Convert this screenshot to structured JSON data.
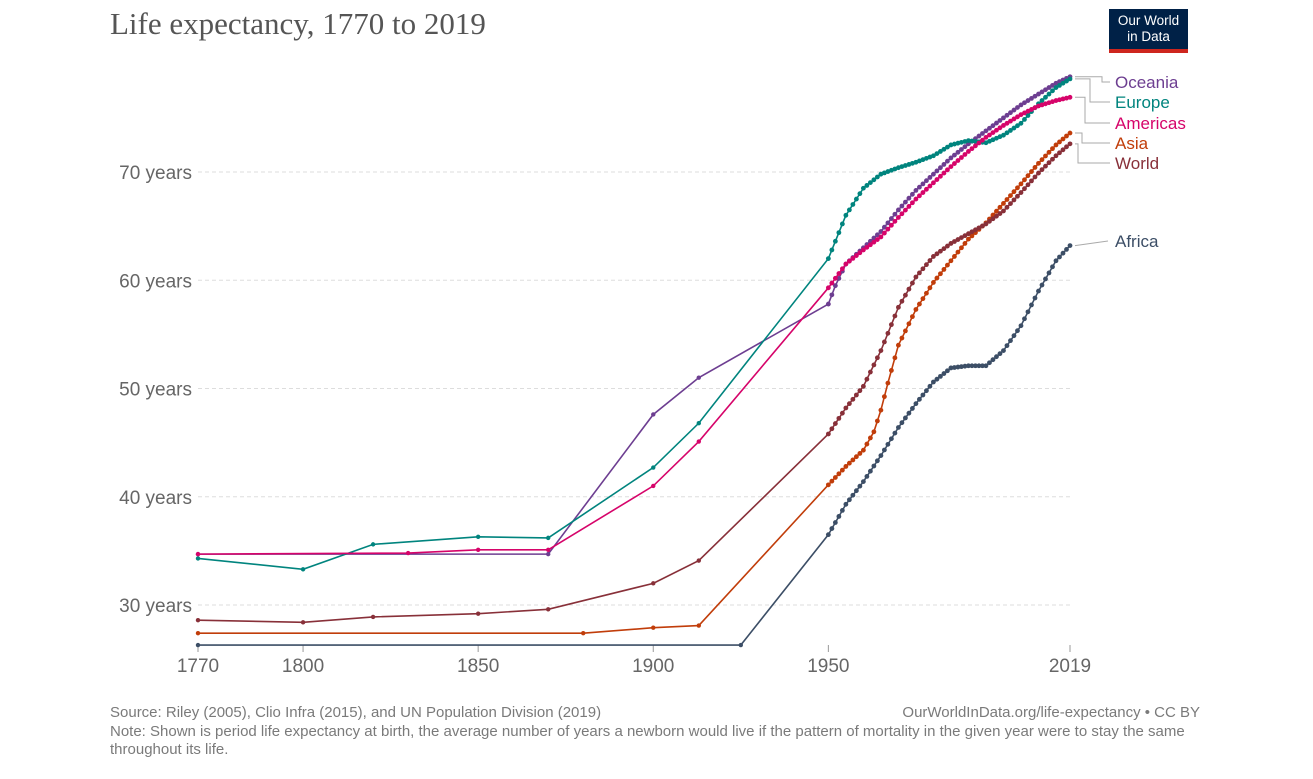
{
  "title": "Life expectancy, 1770 to 2019",
  "logo": {
    "line1": "Our World",
    "line2": "in Data"
  },
  "footer": {
    "source": "Source: Riley (2005), Clio Infra (2015), and UN Population Division (2019)",
    "link": "OurWorldInData.org/life-expectancy • CC BY",
    "note": "Note: Shown is period life expectancy at birth, the average number of years a newborn would live if the pattern of mortality in the given year were to stay the same throughout its life."
  },
  "chart_data": {
    "type": "line",
    "title": "Life expectancy, 1770 to 2019",
    "xlim": [
      1770,
      2019
    ],
    "ylim": [
      26.3,
      80
    ],
    "x_ticks": [
      "1770",
      "1800",
      "1850",
      "1900",
      "1950",
      "2019"
    ],
    "y_ticks": [
      {
        "v": 30,
        "label": "30 years"
      },
      {
        "v": 40,
        "label": "40 years"
      },
      {
        "v": 50,
        "label": "50 years"
      },
      {
        "v": 60,
        "label": "60 years"
      },
      {
        "v": 70,
        "label": "70 years"
      }
    ],
    "grid": "horizontal dashed",
    "legend": "right (labels at line ends)",
    "series": [
      {
        "name": "Oceania",
        "color": "#6d3e91",
        "points": [
          [
            1770,
            34.7
          ],
          [
            1870,
            34.7
          ],
          [
            1900,
            47.6
          ],
          [
            1913,
            51.0
          ],
          [
            1950,
            57.8
          ],
          [
            1952,
            59.5
          ],
          [
            1955,
            61.5
          ],
          [
            1960,
            63
          ],
          [
            1965,
            64.5
          ],
          [
            1970,
            66.5
          ],
          [
            1975,
            68.3
          ],
          [
            1980,
            69.8
          ],
          [
            1985,
            71.3
          ],
          [
            1990,
            72.6
          ],
          [
            1995,
            73.8
          ],
          [
            2000,
            75
          ],
          [
            2005,
            76.2
          ],
          [
            2010,
            77.2
          ],
          [
            2015,
            78.2
          ],
          [
            2019,
            78.8
          ]
        ]
      },
      {
        "name": "Europe",
        "color": "#00847e",
        "points": [
          [
            1770,
            34.3
          ],
          [
            1800,
            33.3
          ],
          [
            1820,
            35.6
          ],
          [
            1850,
            36.3
          ],
          [
            1870,
            36.2
          ],
          [
            1900,
            42.7
          ],
          [
            1913,
            46.8
          ],
          [
            1950,
            62
          ],
          [
            1955,
            66
          ],
          [
            1960,
            68.5
          ],
          [
            1965,
            69.8
          ],
          [
            1970,
            70.4
          ],
          [
            1975,
            70.9
          ],
          [
            1980,
            71.5
          ],
          [
            1985,
            72.5
          ],
          [
            1990,
            72.9
          ],
          [
            1995,
            72.7
          ],
          [
            2000,
            73.4
          ],
          [
            2005,
            74.5
          ],
          [
            2010,
            76.3
          ],
          [
            2015,
            77.8
          ],
          [
            2019,
            78.6
          ]
        ]
      },
      {
        "name": "Americas",
        "color": "#d6046a",
        "points": [
          [
            1770,
            34.7
          ],
          [
            1830,
            34.8
          ],
          [
            1850,
            35.1
          ],
          [
            1870,
            35.1
          ],
          [
            1900,
            41
          ],
          [
            1913,
            45.1
          ],
          [
            1950,
            59.3
          ],
          [
            1955,
            61.5
          ],
          [
            1960,
            62.8
          ],
          [
            1965,
            64
          ],
          [
            1970,
            65.8
          ],
          [
            1975,
            67.5
          ],
          [
            1980,
            69
          ],
          [
            1985,
            70.5
          ],
          [
            1990,
            71.9
          ],
          [
            1995,
            73.2
          ],
          [
            2000,
            74.3
          ],
          [
            2005,
            75.3
          ],
          [
            2010,
            76.1
          ],
          [
            2015,
            76.6
          ],
          [
            2019,
            76.9
          ]
        ]
      },
      {
        "name": "Asia",
        "color": "#c13d0a",
        "points": [
          [
            1770,
            27.4
          ],
          [
            1880,
            27.4
          ],
          [
            1900,
            27.9
          ],
          [
            1913,
            28.1
          ],
          [
            1950,
            41.1
          ],
          [
            1955,
            42.8
          ],
          [
            1960,
            44.3
          ],
          [
            1963,
            46
          ],
          [
            1965,
            48
          ],
          [
            1967,
            50.5
          ],
          [
            1970,
            54
          ],
          [
            1975,
            57.3
          ],
          [
            1980,
            59.8
          ],
          [
            1985,
            61.8
          ],
          [
            1990,
            63.8
          ],
          [
            1995,
            65.3
          ],
          [
            2000,
            67.1
          ],
          [
            2005,
            68.9
          ],
          [
            2010,
            70.8
          ],
          [
            2015,
            72.5
          ],
          [
            2019,
            73.6
          ]
        ]
      },
      {
        "name": "World",
        "color": "#883039",
        "points": [
          [
            1770,
            28.6
          ],
          [
            1800,
            28.4
          ],
          [
            1820,
            28.9
          ],
          [
            1850,
            29.2
          ],
          [
            1870,
            29.6
          ],
          [
            1900,
            32
          ],
          [
            1913,
            34.1
          ],
          [
            1950,
            45.8
          ],
          [
            1955,
            48.2
          ],
          [
            1960,
            50.2
          ],
          [
            1965,
            53.5
          ],
          [
            1970,
            57.5
          ],
          [
            1975,
            60.3
          ],
          [
            1980,
            62.2
          ],
          [
            1985,
            63.4
          ],
          [
            1990,
            64.3
          ],
          [
            1995,
            65.2
          ],
          [
            2000,
            66.4
          ],
          [
            2005,
            68.1
          ],
          [
            2010,
            69.9
          ],
          [
            2015,
            71.5
          ],
          [
            2019,
            72.6
          ]
        ]
      },
      {
        "name": "Africa",
        "color": "#3c4e66",
        "points": [
          [
            1770,
            26.3
          ],
          [
            1925,
            26.3
          ],
          [
            1950,
            36.5
          ],
          [
            1955,
            39.3
          ],
          [
            1960,
            41.4
          ],
          [
            1965,
            43.8
          ],
          [
            1970,
            46.4
          ],
          [
            1975,
            48.6
          ],
          [
            1980,
            50.6
          ],
          [
            1985,
            51.9
          ],
          [
            1990,
            52.1
          ],
          [
            1995,
            52.1
          ],
          [
            2000,
            53.5
          ],
          [
            2005,
            55.8
          ],
          [
            2010,
            59
          ],
          [
            2015,
            61.8
          ],
          [
            2019,
            63.2
          ]
        ]
      }
    ]
  }
}
